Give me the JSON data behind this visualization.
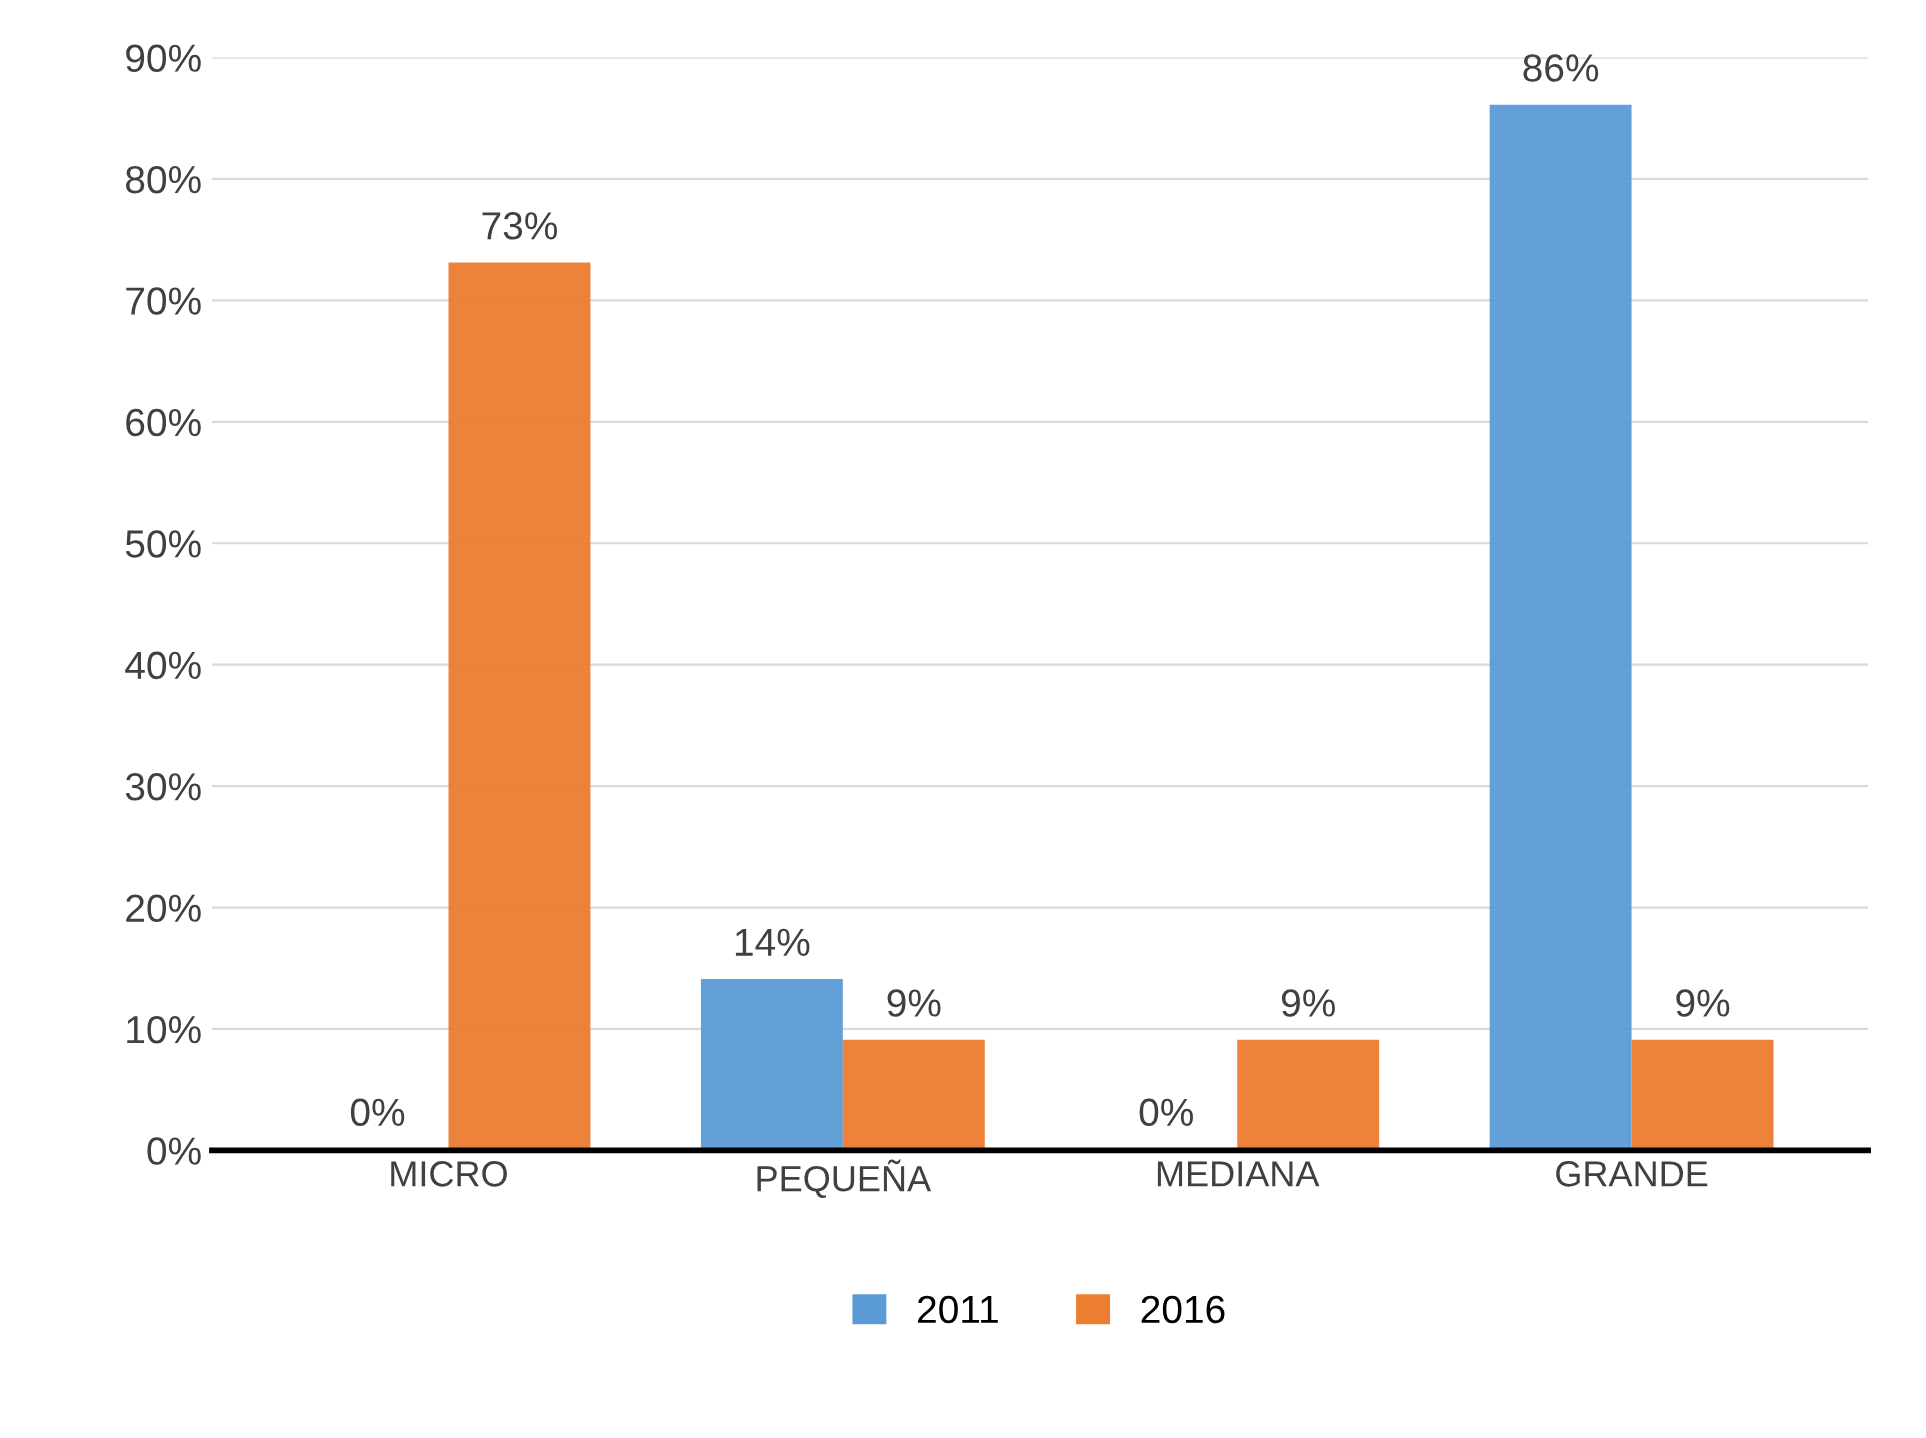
{
  "chart_data": {
    "type": "bar",
    "categories": [
      "MICRO",
      "PEQUEÑA",
      "MEDIANA",
      "GRANDE"
    ],
    "series": [
      {
        "name": "2011",
        "color": "#5b9bd5",
        "values": [
          0,
          14,
          0,
          86
        ],
        "value_labels": [
          "0%",
          "14%",
          "0%",
          "86%"
        ]
      },
      {
        "name": "2016",
        "color": "#ed7d31",
        "values": [
          73,
          9,
          9,
          9
        ],
        "value_labels": [
          "73%",
          "9%",
          "9%",
          "9%"
        ]
      }
    ],
    "ylim": [
      0,
      90
    ],
    "yticks": [
      {
        "value": 0,
        "label": "0%"
      },
      {
        "value": 10,
        "label": "10%"
      },
      {
        "value": 20,
        "label": "20%"
      },
      {
        "value": 30,
        "label": "30%"
      },
      {
        "value": 40,
        "label": "40%"
      },
      {
        "value": 50,
        "label": "50%"
      },
      {
        "value": 60,
        "label": "60%"
      },
      {
        "value": 70,
        "label": "70%"
      },
      {
        "value": 80,
        "label": "80%"
      },
      {
        "value": 90,
        "label": "90%"
      }
    ],
    "grid": "y",
    "legend": "bottom"
  }
}
